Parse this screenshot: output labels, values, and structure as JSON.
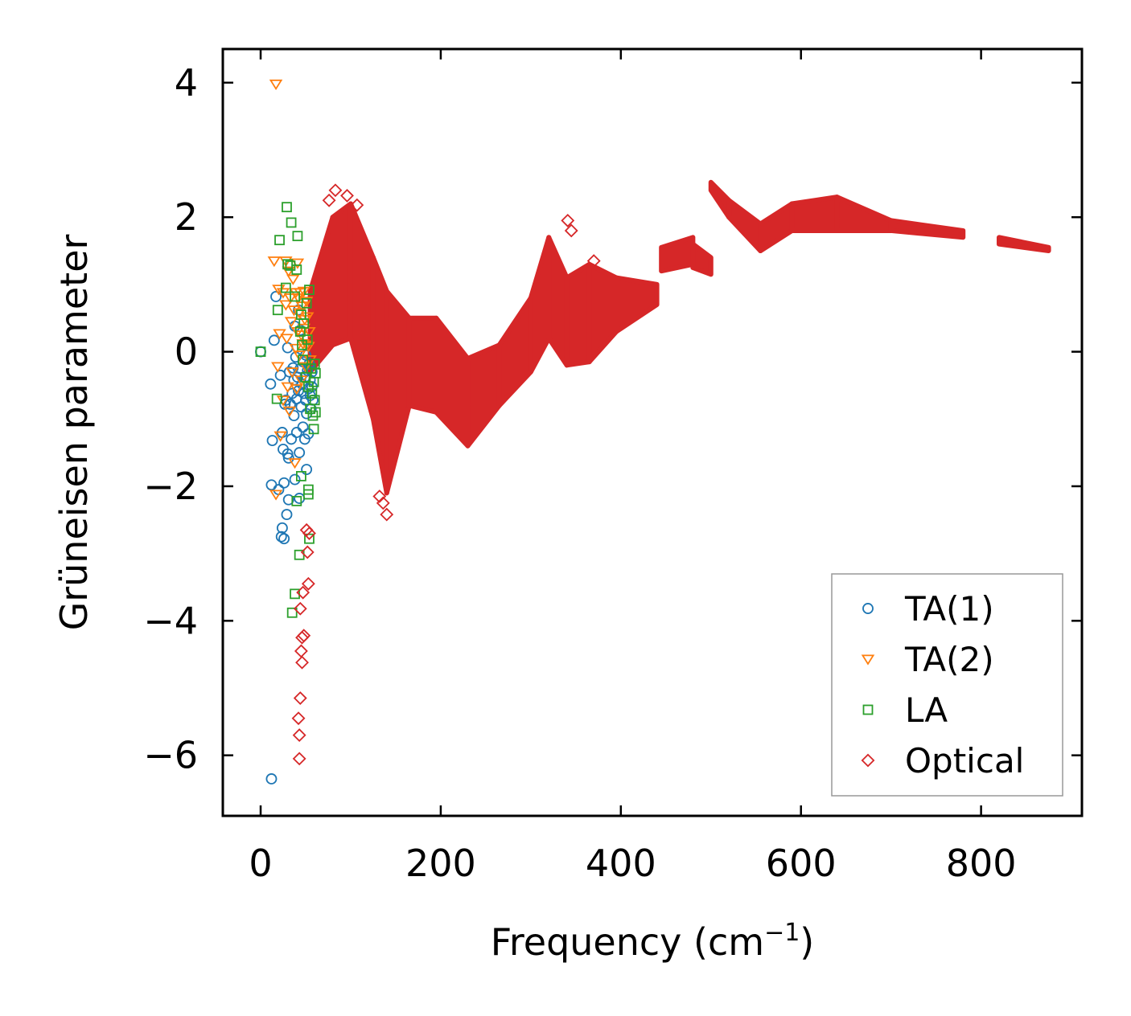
{
  "chart_data": {
    "type": "scatter",
    "title": "",
    "xlabel": "Frequency (cm",
    "xlabel_sup": "−1",
    "xlabel_close": ")",
    "ylabel": "Grüneisen parameter",
    "xlim": [
      -42,
      912
    ],
    "ylim": [
      -6.9,
      4.5
    ],
    "xticks": [
      {
        "value": 0,
        "label": "0"
      },
      {
        "value": 200,
        "label": "200"
      },
      {
        "value": 400,
        "label": "400"
      },
      {
        "value": 600,
        "label": "600"
      },
      {
        "value": 800,
        "label": "800"
      }
    ],
    "yticks": [
      {
        "value": 4,
        "label": "4"
      },
      {
        "value": 2,
        "label": "2"
      },
      {
        "value": 0,
        "label": "0"
      },
      {
        "value": -2,
        "label": "−2"
      },
      {
        "value": -4,
        "label": "−4"
      },
      {
        "value": -6,
        "label": "−6"
      }
    ],
    "grid": false,
    "legend_position": "lower-right",
    "series": [
      {
        "name": "TA(1)",
        "marker": "circle",
        "color": "#1f77b4",
        "points": [
          [
            0,
            0
          ],
          [
            12,
            -6.35
          ],
          [
            11,
            -0.48
          ],
          [
            13,
            -1.32
          ],
          [
            15,
            0.17
          ],
          [
            17,
            0.82
          ],
          [
            12,
            -1.98
          ],
          [
            20,
            -2.05
          ],
          [
            22,
            -0.35
          ],
          [
            23,
            -2.75
          ],
          [
            24,
            -2.62
          ],
          [
            24,
            -1.2
          ],
          [
            25,
            -1.45
          ],
          [
            26,
            -2.78
          ],
          [
            26,
            -1.95
          ],
          [
            27,
            -0.78
          ],
          [
            28,
            -0.72
          ],
          [
            29,
            -2.42
          ],
          [
            30,
            -1.52
          ],
          [
            30,
            0.06
          ],
          [
            31,
            -2.2
          ],
          [
            31,
            -1.58
          ],
          [
            32,
            -0.3
          ],
          [
            33,
            -0.78
          ],
          [
            34,
            -1.3
          ],
          [
            35,
            -0.62
          ],
          [
            36,
            -0.24
          ],
          [
            37,
            -0.95
          ],
          [
            37,
            -0.42
          ],
          [
            38,
            -1.9
          ],
          [
            38,
            0.38
          ],
          [
            39,
            -0.08
          ],
          [
            40,
            -0.7
          ],
          [
            40,
            -1.2
          ],
          [
            41,
            -0.38
          ],
          [
            42,
            -0.58
          ],
          [
            42,
            0.62
          ],
          [
            43,
            -1.5
          ],
          [
            43,
            -2.18
          ],
          [
            44,
            -0.25
          ],
          [
            44,
            0.32
          ],
          [
            45,
            -0.82
          ],
          [
            46,
            -0.48
          ],
          [
            47,
            -1.12
          ],
          [
            47,
            -0.15
          ],
          [
            48,
            -0.62
          ],
          [
            49,
            -1.3
          ],
          [
            49,
            -0.38
          ],
          [
            50,
            -0.72
          ],
          [
            50,
            -0.05
          ],
          [
            51,
            -1.75
          ],
          [
            51,
            -0.92
          ],
          [
            52,
            -0.28
          ],
          [
            53,
            -0.55
          ],
          [
            53,
            -1.22
          ],
          [
            54,
            -0.18
          ],
          [
            55,
            -0.65
          ],
          [
            55,
            -0.42
          ],
          [
            56,
            -0.85
          ],
          [
            57,
            -0.3
          ],
          [
            57,
            -0.52
          ],
          [
            58,
            -0.72
          ]
        ]
      },
      {
        "name": "TA(2)",
        "marker": "triangle-down",
        "color": "#ff7f0e",
        "points": [
          [
            17,
            3.98
          ],
          [
            15,
            1.35
          ],
          [
            19,
            -0.22
          ],
          [
            20,
            0.93
          ],
          [
            22,
            -1.25
          ],
          [
            21,
            0.27
          ],
          [
            17,
            -2.12
          ],
          [
            25,
            0.88
          ],
          [
            25,
            -0.72
          ],
          [
            28,
            0.7
          ],
          [
            28,
            1.35
          ],
          [
            29,
            0.2
          ],
          [
            30,
            -0.52
          ],
          [
            31,
            1.2
          ],
          [
            32,
            -0.88
          ],
          [
            33,
            0.8
          ],
          [
            34,
            0.45
          ],
          [
            35,
            -0.3
          ],
          [
            36,
            1.08
          ],
          [
            37,
            0.62
          ],
          [
            38,
            -1.65
          ],
          [
            39,
            0.88
          ],
          [
            39,
            0.05
          ],
          [
            40,
            -0.55
          ],
          [
            41,
            1.32
          ],
          [
            41,
            0.3
          ],
          [
            42,
            0.8
          ],
          [
            43,
            -0.05
          ],
          [
            43,
            0.58
          ],
          [
            44,
            0.88
          ],
          [
            45,
            -0.42
          ],
          [
            45,
            0.25
          ],
          [
            46,
            0.68
          ],
          [
            47,
            0.12
          ],
          [
            48,
            0.9
          ],
          [
            48,
            0.35
          ],
          [
            49,
            0.48
          ],
          [
            50,
            -0.22
          ],
          [
            51,
            0.75
          ],
          [
            51,
            0.1
          ],
          [
            52,
            0.52
          ],
          [
            53,
            0.08
          ],
          [
            54,
            0.3
          ],
          [
            55,
            -0.12
          ]
        ]
      },
      {
        "name": "LA",
        "marker": "square",
        "color": "#2ca02c",
        "points": [
          [
            0,
            0
          ],
          [
            29,
            2.15
          ],
          [
            34,
            1.92
          ],
          [
            21,
            1.66
          ],
          [
            41,
            1.72
          ],
          [
            30,
            1.3
          ],
          [
            33,
            1.28
          ],
          [
            40,
            1.22
          ],
          [
            28,
            0.95
          ],
          [
            19,
            0.62
          ],
          [
            38,
            0.82
          ],
          [
            45,
            0.55
          ],
          [
            18,
            -0.7
          ],
          [
            35,
            -3.88
          ],
          [
            38,
            -3.6
          ],
          [
            43,
            -3.02
          ],
          [
            40,
            -2.22
          ],
          [
            45,
            -1.85
          ],
          [
            53,
            -2.05
          ],
          [
            53,
            -2.12
          ],
          [
            54,
            -2.78
          ],
          [
            44,
            0.3
          ],
          [
            46,
            0.1
          ],
          [
            47,
            -0.12
          ],
          [
            48,
            0.42
          ],
          [
            50,
            -0.38
          ],
          [
            51,
            0.72
          ],
          [
            52,
            0.18
          ],
          [
            53,
            -0.52
          ],
          [
            54,
            0.92
          ],
          [
            55,
            -0.85
          ],
          [
            56,
            -0.25
          ],
          [
            57,
            -0.62
          ],
          [
            58,
            -0.95
          ],
          [
            59,
            -1.15
          ],
          [
            59,
            -0.45
          ],
          [
            60,
            -0.18
          ],
          [
            60,
            -0.72
          ],
          [
            61,
            -0.32
          ],
          [
            61,
            -0.9
          ]
        ]
      },
      {
        "name": "Optical",
        "marker": "diamond",
        "color": "#d62728",
        "outliers": [
          [
            43,
            -6.05
          ],
          [
            43,
            -5.7
          ],
          [
            42,
            -5.45
          ],
          [
            44,
            -5.15
          ],
          [
            46,
            -4.62
          ],
          [
            45,
            -4.45
          ],
          [
            46,
            -4.25
          ],
          [
            48,
            -4.22
          ],
          [
            44,
            -3.82
          ],
          [
            47,
            -3.58
          ],
          [
            53,
            -3.45
          ],
          [
            52,
            -2.98
          ],
          [
            51,
            -2.65
          ],
          [
            54,
            -2.7
          ],
          [
            136,
            -2.25
          ],
          [
            140,
            -2.42
          ],
          [
            132,
            -2.15
          ],
          [
            341,
            1.95
          ],
          [
            345,
            1.8
          ],
          [
            370,
            1.35
          ],
          [
            83,
            2.4
          ],
          [
            107,
            2.18
          ],
          [
            76,
            2.25
          ],
          [
            96,
            2.32
          ]
        ],
        "bands": [
          {
            "x_start": 55,
            "x_end": 80,
            "y_top": [
              0.9,
              2.0
            ],
            "y_bottom": [
              -0.3,
              0.1
            ]
          },
          {
            "x_start": 80,
            "x_end": 100,
            "y_top": [
              2.0,
              2.2
            ],
            "y_bottom": [
              0.1,
              0.2
            ]
          },
          {
            "x_start": 100,
            "x_end": 125,
            "y_top": [
              2.2,
              1.4
            ],
            "y_bottom": [
              0.2,
              -1.0
            ]
          },
          {
            "x_start": 125,
            "x_end": 140,
            "y_top": [
              1.4,
              0.9
            ],
            "y_bottom": [
              -1.0,
              -2.1
            ]
          },
          {
            "x_start": 140,
            "x_end": 165,
            "y_top": [
              0.9,
              0.5
            ],
            "y_bottom": [
              -2.1,
              -0.8
            ]
          },
          {
            "x_start": 165,
            "x_end": 195,
            "y_top": [
              0.5,
              0.5
            ],
            "y_bottom": [
              -0.8,
              -0.9
            ]
          },
          {
            "x_start": 195,
            "x_end": 230,
            "y_top": [
              0.5,
              -0.1
            ],
            "y_bottom": [
              -0.9,
              -1.4
            ]
          },
          {
            "x_start": 230,
            "x_end": 265,
            "y_top": [
              -0.1,
              0.1
            ],
            "y_bottom": [
              -1.4,
              -0.8
            ]
          },
          {
            "x_start": 265,
            "x_end": 300,
            "y_top": [
              0.1,
              0.8
            ],
            "y_bottom": [
              -0.8,
              -0.3
            ]
          },
          {
            "x_start": 300,
            "x_end": 320,
            "y_top": [
              0.8,
              1.7
            ],
            "y_bottom": [
              -0.3,
              0.2
            ]
          },
          {
            "x_start": 320,
            "x_end": 340,
            "y_top": [
              1.7,
              1.1
            ],
            "y_bottom": [
              0.2,
              -0.2
            ]
          },
          {
            "x_start": 340,
            "x_end": 365,
            "y_top": [
              1.1,
              1.3
            ],
            "y_bottom": [
              -0.2,
              -0.15
            ]
          },
          {
            "x_start": 365,
            "x_end": 395,
            "y_top": [
              1.3,
              1.1
            ],
            "y_bottom": [
              -0.15,
              0.3
            ]
          },
          {
            "x_start": 395,
            "x_end": 440,
            "y_top": [
              1.1,
              1.0
            ],
            "y_bottom": [
              0.3,
              0.7
            ]
          },
          {
            "x_start": 445,
            "x_end": 480,
            "y_top": [
              1.55,
              1.7
            ],
            "y_bottom": [
              1.2,
              1.3
            ]
          },
          {
            "x_start": 480,
            "x_end": 500,
            "y_top": [
              1.6,
              1.4
            ],
            "y_bottom": [
              1.25,
              1.15
            ]
          },
          {
            "x_start": 500,
            "x_end": 520,
            "y_top": [
              2.52,
              2.25
            ],
            "y_bottom": [
              2.4,
              2.0
            ]
          },
          {
            "x_start": 520,
            "x_end": 555,
            "y_top": [
              2.25,
              1.9
            ],
            "y_bottom": [
              2.0,
              1.5
            ]
          },
          {
            "x_start": 555,
            "x_end": 590,
            "y_top": [
              1.9,
              2.2
            ],
            "y_bottom": [
              1.5,
              1.8
            ]
          },
          {
            "x_start": 590,
            "x_end": 640,
            "y_top": [
              2.2,
              2.3
            ],
            "y_bottom": [
              1.8,
              1.8
            ]
          },
          {
            "x_start": 640,
            "x_end": 700,
            "y_top": [
              2.3,
              1.95
            ],
            "y_bottom": [
              1.8,
              1.8
            ]
          },
          {
            "x_start": 700,
            "x_end": 780,
            "y_top": [
              1.95,
              1.8
            ],
            "y_bottom": [
              1.8,
              1.7
            ]
          },
          {
            "x_start": 820,
            "x_end": 875,
            "y_top": [
              1.7,
              1.55
            ],
            "y_bottom": [
              1.6,
              1.5
            ]
          }
        ]
      }
    ]
  }
}
